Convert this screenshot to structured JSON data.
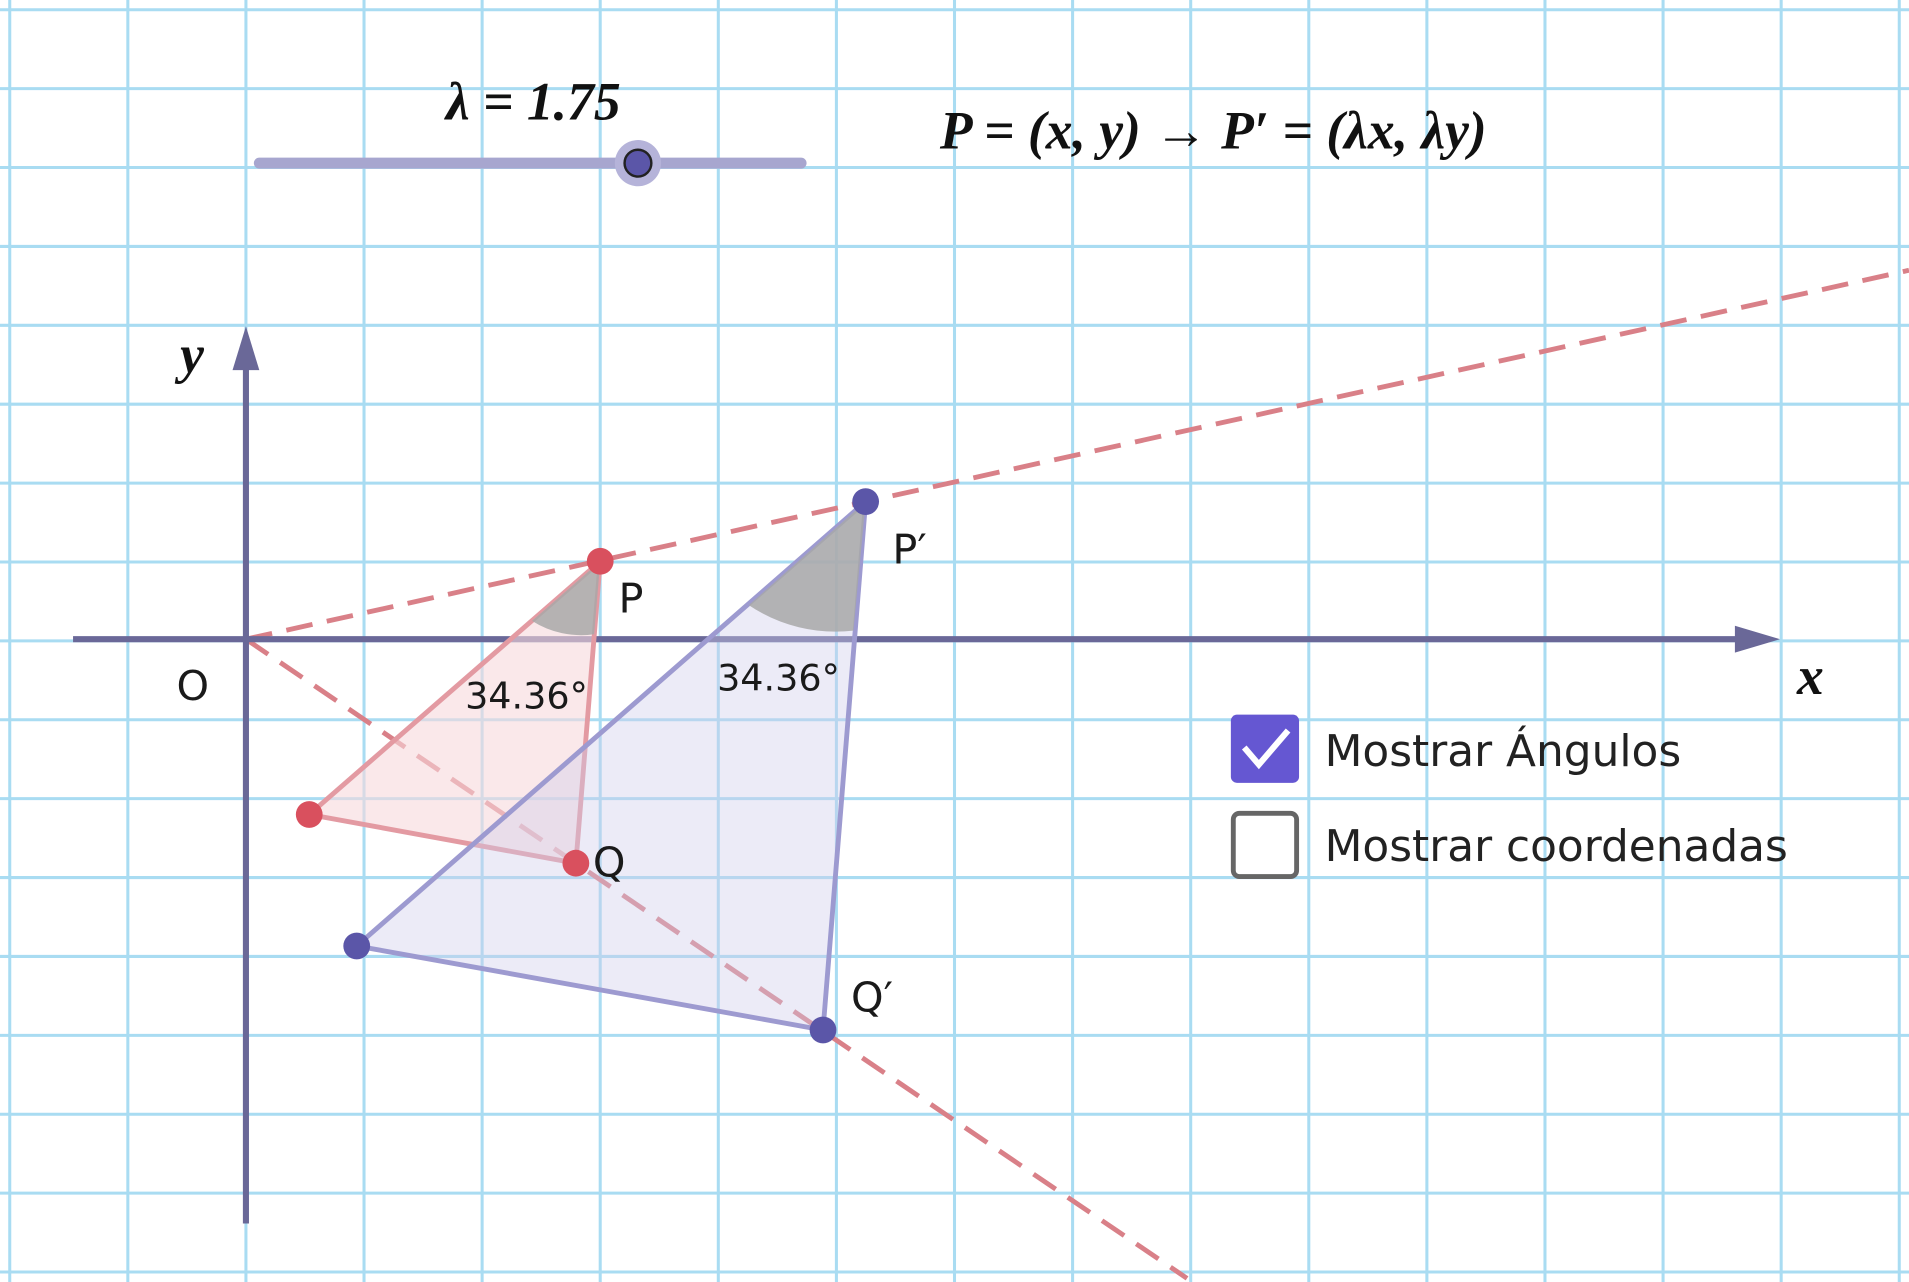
{
  "slider": {
    "label": "λ = 1.75"
  },
  "formula": "P = (x, y) → P′ = (λx, λy)",
  "axes": {
    "x": "x",
    "y": "y",
    "origin": "O"
  },
  "points": {
    "P": "P",
    "Q": "Q",
    "P_image": "P′",
    "Q_image": "Q′"
  },
  "angles": [
    "34.36°",
    "34.36°"
  ],
  "checkboxes": [
    {
      "label": "Mostrar Ángulos",
      "checked": true
    },
    {
      "label": "Mostrar coordenadas",
      "checked": false
    }
  ]
}
